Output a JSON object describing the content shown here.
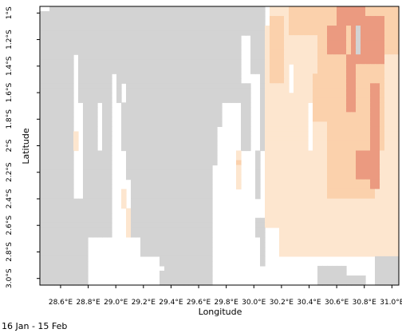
{
  "chart_data": {
    "type": "heatmap",
    "xlabel": "Longitude",
    "ylabel": "Latitude",
    "x_ticks": [
      "28.6°E",
      "28.8°E",
      "29.0°E",
      "29.2°E",
      "29.4°E",
      "29.6°E",
      "29.8°E",
      "30.0°E",
      "30.2°E",
      "30.4°E",
      "30.6°E",
      "30.8°E",
      "31.0°E"
    ],
    "y_ticks": [
      "1°S",
      "1.2°S",
      "1.4°S",
      "1.6°S",
      "1.8°S",
      "2°S",
      "2.2°S",
      "2.4°S",
      "2.6°S",
      "2.8°S",
      "3.0°S"
    ],
    "xlim": [
      28.45,
      31.05
    ],
    "ylim": [
      -3.05,
      -0.95
    ],
    "colors": {
      "no_data": "#d3d3d3",
      "level1": "#fde6cf",
      "level2": "#fbd1ac",
      "level3": "#eb9a80",
      "background": "#ffffff"
    }
  },
  "caption": {
    "date_range": "16 Jan - 15 Feb"
  }
}
